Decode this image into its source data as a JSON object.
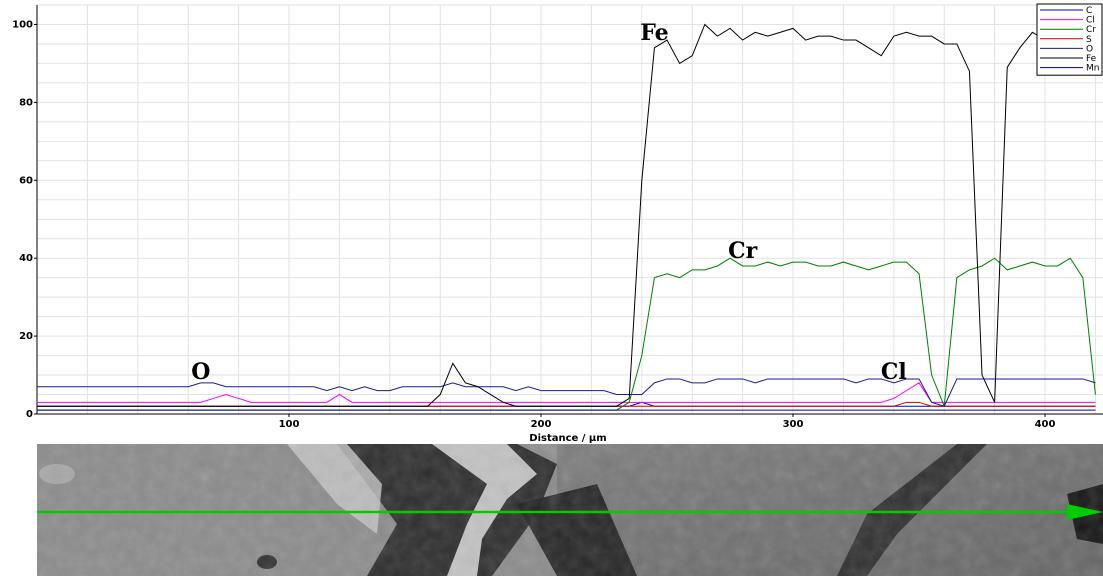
{
  "chart_data": {
    "type": "line",
    "xlabel": "Distance / µm",
    "ylabel": "",
    "xlim": [
      0,
      423
    ],
    "ylim": [
      0,
      105
    ],
    "x_ticks": [
      100,
      200,
      300,
      400
    ],
    "y_ticks": [
      0,
      20,
      40,
      60,
      80,
      100
    ],
    "grid": true,
    "legend_position": "top-right",
    "x": [
      0,
      5,
      10,
      15,
      20,
      25,
      30,
      35,
      40,
      45,
      50,
      55,
      60,
      65,
      70,
      75,
      80,
      85,
      90,
      95,
      100,
      105,
      110,
      115,
      120,
      125,
      130,
      135,
      140,
      145,
      150,
      155,
      160,
      165,
      170,
      175,
      180,
      185,
      190,
      195,
      200,
      205,
      210,
      215,
      220,
      225,
      230,
      235,
      240,
      245,
      250,
      255,
      260,
      265,
      270,
      275,
      280,
      285,
      290,
      295,
      300,
      305,
      310,
      315,
      320,
      325,
      330,
      335,
      340,
      345,
      350,
      355,
      360,
      365,
      370,
      375,
      380,
      385,
      390,
      395,
      400,
      405,
      410,
      415,
      420
    ],
    "series": [
      {
        "name": "C",
        "color": "#0000cc",
        "values": [
          2,
          2,
          2,
          2,
          2,
          2,
          2,
          2,
          2,
          2,
          2,
          2,
          2,
          2,
          2,
          2,
          2,
          2,
          2,
          2,
          2,
          2,
          2,
          2,
          2,
          2,
          2,
          2,
          2,
          2,
          2,
          2,
          2,
          2,
          2,
          2,
          2,
          2,
          2,
          2,
          2,
          2,
          2,
          2,
          2,
          2,
          2,
          2,
          3,
          2,
          2,
          2,
          2,
          2,
          2,
          2,
          2,
          2,
          2,
          2,
          2,
          2,
          2,
          2,
          2,
          2,
          2,
          2,
          2,
          2,
          2,
          2,
          2,
          2,
          2,
          2,
          2,
          2,
          2,
          2,
          2,
          2,
          2,
          2,
          2
        ]
      },
      {
        "name": "Cl",
        "color": "#ff00ff",
        "values": [
          3,
          3,
          3,
          3,
          3,
          3,
          3,
          3,
          3,
          3,
          3,
          3,
          3,
          3,
          4,
          5,
          4,
          3,
          3,
          3,
          3,
          3,
          3,
          3,
          5,
          3,
          3,
          3,
          3,
          3,
          3,
          3,
          3,
          3,
          3,
          3,
          3,
          3,
          3,
          3,
          3,
          3,
          3,
          3,
          3,
          3,
          3,
          3,
          3,
          3,
          3,
          3,
          3,
          3,
          3,
          3,
          3,
          3,
          3,
          3,
          3,
          3,
          3,
          3,
          3,
          3,
          3,
          3,
          4,
          6,
          8,
          3,
          3,
          3,
          3,
          3,
          3,
          3,
          3,
          3,
          3,
          3,
          3,
          3,
          3
        ]
      },
      {
        "name": "Cr",
        "color": "#008000",
        "values": [
          1,
          1,
          1,
          1,
          1,
          1,
          1,
          1,
          1,
          1,
          1,
          1,
          1,
          1,
          1,
          1,
          1,
          1,
          1,
          1,
          1,
          1,
          1,
          1,
          1,
          1,
          1,
          1,
          1,
          1,
          1,
          1,
          1,
          1,
          1,
          1,
          1,
          1,
          1,
          1,
          1,
          1,
          1,
          1,
          1,
          1,
          1,
          3,
          15,
          35,
          36,
          35,
          37,
          37,
          38,
          40,
          38,
          38,
          39,
          38,
          39,
          39,
          38,
          38,
          39,
          38,
          37,
          38,
          39,
          39,
          36,
          10,
          2,
          35,
          37,
          38,
          40,
          37,
          38,
          39,
          38,
          38,
          40,
          35,
          5
        ]
      },
      {
        "name": "S",
        "color": "#cc0000",
        "values": [
          2,
          2,
          2,
          2,
          2,
          2,
          2,
          2,
          2,
          2,
          2,
          2,
          2,
          2,
          2,
          2,
          2,
          2,
          2,
          2,
          2,
          2,
          2,
          2,
          2,
          2,
          2,
          2,
          2,
          2,
          2,
          2,
          2,
          2,
          2,
          2,
          2,
          2,
          2,
          2,
          2,
          2,
          2,
          2,
          2,
          2,
          2,
          2,
          2,
          2,
          2,
          2,
          2,
          2,
          2,
          2,
          2,
          2,
          2,
          2,
          2,
          2,
          2,
          2,
          2,
          2,
          2,
          2,
          2,
          3,
          3,
          2,
          2,
          2,
          2,
          2,
          2,
          2,
          2,
          2,
          2,
          2,
          2,
          2,
          2
        ]
      },
      {
        "name": "O",
        "color": "#1a1a99",
        "values": [
          7,
          7,
          7,
          7,
          7,
          7,
          7,
          7,
          7,
          7,
          7,
          7,
          7,
          8,
          8,
          7,
          7,
          7,
          7,
          7,
          7,
          7,
          7,
          6,
          7,
          6,
          7,
          6,
          6,
          7,
          7,
          7,
          7,
          8,
          7,
          7,
          7,
          7,
          6,
          7,
          6,
          6,
          6,
          6,
          6,
          6,
          5,
          5,
          5,
          8,
          9,
          9,
          8,
          8,
          9,
          9,
          9,
          8,
          9,
          9,
          9,
          9,
          9,
          9,
          9,
          8,
          9,
          9,
          8,
          9,
          9,
          3,
          2,
          9,
          9,
          9,
          9,
          9,
          9,
          9,
          9,
          9,
          9,
          9,
          8
        ]
      },
      {
        "name": "Fe",
        "color": "#000000",
        "values": [
          2,
          2,
          2,
          2,
          2,
          2,
          2,
          2,
          2,
          2,
          2,
          2,
          2,
          2,
          2,
          2,
          2,
          2,
          2,
          2,
          2,
          2,
          2,
          2,
          2,
          2,
          2,
          2,
          2,
          2,
          2,
          2,
          5,
          13,
          8,
          7,
          5,
          3,
          2,
          2,
          2,
          2,
          2,
          2,
          2,
          2,
          2,
          4,
          60,
          94,
          96,
          90,
          92,
          100,
          97,
          99,
          96,
          98,
          97,
          98,
          99,
          96,
          97,
          97,
          96,
          96,
          94,
          92,
          97,
          98,
          97,
          97,
          95,
          95,
          88,
          10,
          3,
          89,
          94,
          98,
          96,
          94,
          95,
          94,
          95
        ]
      },
      {
        "name": "Mn",
        "color": "#000088",
        "values": [
          1,
          1,
          1,
          1,
          1,
          1,
          1,
          1,
          1,
          1,
          1,
          1,
          1,
          1,
          1,
          1,
          1,
          1,
          1,
          1,
          1,
          1,
          1,
          1,
          1,
          1,
          1,
          1,
          1,
          1,
          1,
          1,
          1,
          1,
          1,
          1,
          1,
          1,
          1,
          1,
          1,
          1,
          1,
          1,
          1,
          1,
          1,
          1,
          1,
          1,
          1,
          1,
          1,
          1,
          1,
          1,
          1,
          1,
          1,
          1,
          1,
          1,
          1,
          1,
          1,
          1,
          1,
          1,
          1,
          1,
          1,
          1,
          1,
          1,
          1,
          1,
          1,
          1,
          1,
          1,
          1,
          1,
          1,
          1,
          1
        ]
      }
    ],
    "annotations": [
      {
        "text": "Fe",
        "x": 245,
        "y": 96
      },
      {
        "text": "Cr",
        "x": 280,
        "y": 40
      },
      {
        "text": "O",
        "x": 65,
        "y": 9
      },
      {
        "text": "Cl",
        "x": 340,
        "y": 9
      }
    ]
  },
  "sem_image": {
    "description_colors": [
      "#6e6e6e",
      "#2a2a2a",
      "#d8d8d8",
      "#9a9a9a"
    ],
    "scan_line_color": "#00cc00",
    "arrow_icon": "arrow-right-icon"
  }
}
